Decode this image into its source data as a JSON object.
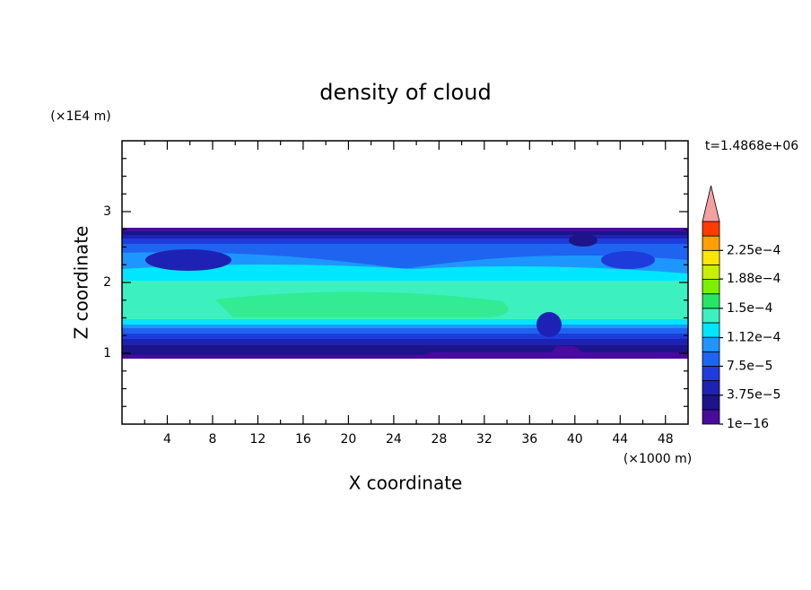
{
  "chart_data": {
    "type": "contour",
    "title": "density of cloud",
    "x_label": "X coordinate",
    "y_label": "Z coordinate",
    "x_unit": "(×1000 m)",
    "y_unit": "(×1E4 m)",
    "annotation": "t=1.4868e+06",
    "xlim": [
      0,
      50
    ],
    "xticks": [
      4,
      8,
      12,
      16,
      20,
      24,
      28,
      32,
      36,
      40,
      44,
      48
    ],
    "ylim": [
      0,
      4
    ],
    "yticks": [
      1,
      2,
      3
    ],
    "colorbar": {
      "lim": [
        0,
        0.0002625
      ],
      "ticks": [
        {
          "value": 1e-16,
          "label": "1e−16"
        },
        {
          "value": 3.75e-05,
          "label": "3.75e−5"
        },
        {
          "value": 7.5e-05,
          "label": "7.5e−5"
        },
        {
          "value": 0.000112,
          "label": "1.12e−4"
        },
        {
          "value": 0.00015,
          "label": "1.5e−4"
        },
        {
          "value": 0.000188,
          "label": "1.88e−4"
        },
        {
          "value": 0.000225,
          "label": "2.25e−4"
        }
      ],
      "colors": [
        "#4a0a9e",
        "#1c1488",
        "#1e22b4",
        "#1e3cdc",
        "#1e64f0",
        "#1e96ff",
        "#00e6ff",
        "#3cf0c0",
        "#28e664",
        "#7cf000",
        "#c8f000",
        "#ffe600",
        "#ffa000",
        "#ff3c00"
      ],
      "extend_color": "#f4a0a0"
    }
  }
}
